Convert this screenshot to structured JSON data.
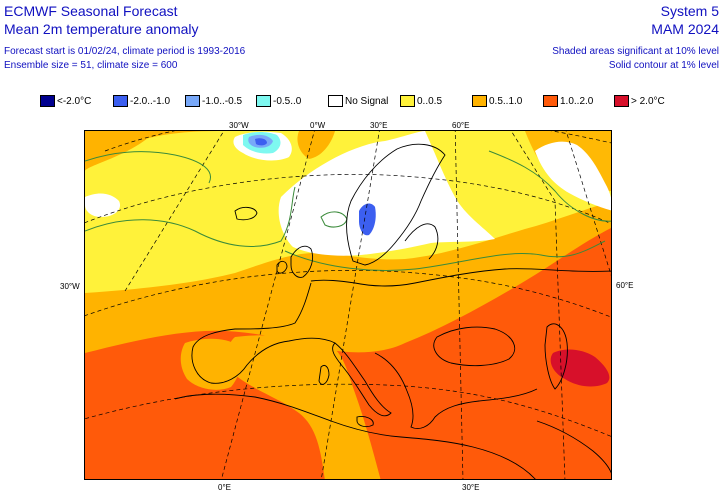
{
  "header": {
    "line1_left": "ECMWF Seasonal Forecast",
    "line2_left": "Mean 2m temperature anomaly",
    "line3_left": "Forecast start is 01/02/24, climate period is 1993-2016",
    "line4_left": "Ensemble size = 51, climate size = 600",
    "line1_right": "System 5",
    "line2_right": "MAM 2024",
    "line3_right": "Shaded areas significant at 10% level",
    "line4_right": "Solid contour at 1% level"
  },
  "legend": [
    {
      "label": "<-2.0°C",
      "color": "#00008f"
    },
    {
      "label": "-2.0..-1.0",
      "color": "#3c5ff0"
    },
    {
      "label": "-1.0..-0.5",
      "color": "#78a8f8"
    },
    {
      "label": "-0.5..0",
      "color": "#7ef8f0"
    },
    {
      "label": "No Signal",
      "color": "#ffffff"
    },
    {
      "label": "0..0.5",
      "color": "#fff23a"
    },
    {
      "label": "0.5..1.0",
      "color": "#ffb300"
    },
    {
      "label": "1.0..2.0",
      "color": "#ff5a0a"
    },
    {
      "label": "> 2.0°C",
      "color": "#d7102a"
    }
  ],
  "map_labels": {
    "top_30w": "30°W",
    "top_0w": "0°W",
    "top_30e": "30°E",
    "top_60e": "60°E",
    "left_30w": "30°W",
    "right_60e": "60°E",
    "bottom_0e": "0°E",
    "bottom_30e": "30°E"
  }
}
